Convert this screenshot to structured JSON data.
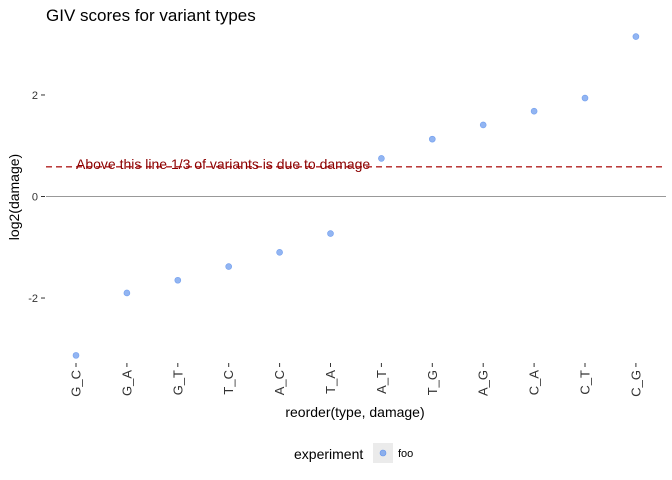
{
  "chart_data": {
    "type": "scatter",
    "title": "GIV scores for variant types",
    "xlabel": "reorder(type, damage)",
    "ylabel": "log2(damage)",
    "categories": [
      "G_C",
      "G_A",
      "G_T",
      "T_C",
      "A_C",
      "T_A",
      "A_T",
      "T_G",
      "A_G",
      "C_A",
      "C_T",
      "C_G"
    ],
    "series": [
      {
        "name": "foo",
        "color": "#6495ED",
        "values": [
          -3.13,
          -1.9,
          -1.65,
          -1.38,
          -1.1,
          -0.73,
          0.75,
          1.13,
          1.41,
          1.68,
          1.94,
          3.15
        ]
      }
    ],
    "ylim": [
      -3.28,
      3.28
    ],
    "yticks": [
      -2,
      0,
      2
    ],
    "ytick_labels": [
      "-2",
      "0",
      "2"
    ],
    "reference_lines": [
      {
        "y": 0,
        "style": "solid",
        "color": "#999999"
      },
      {
        "y": 0.585,
        "style": "dashed",
        "color": "#B22222"
      }
    ],
    "annotation": {
      "text": "Above this line 1/3 of variants is due to damage",
      "x_category": "G_C",
      "y": 0.585,
      "color": "#8B0000"
    },
    "grid": false,
    "legend": {
      "title": "experiment",
      "position": "bottom",
      "entries": [
        "foo"
      ]
    }
  }
}
